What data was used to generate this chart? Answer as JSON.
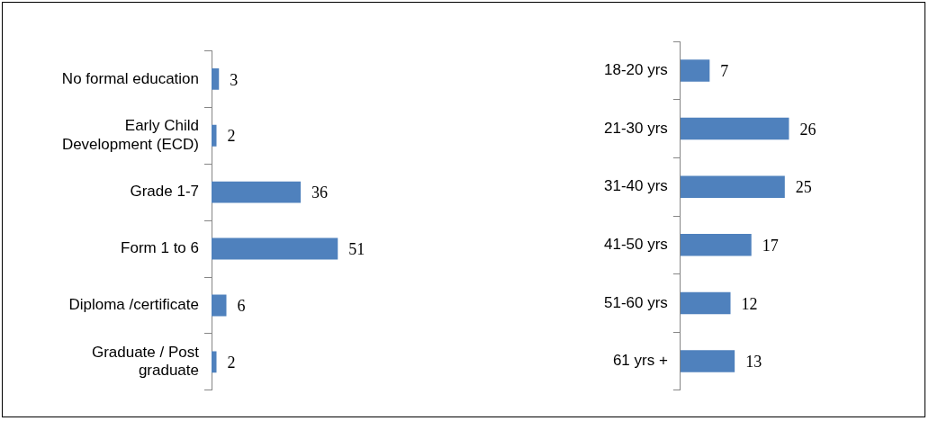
{
  "chart_data": [
    {
      "type": "bar",
      "orientation": "horizontal",
      "categories": [
        "No formal education",
        "Early Child Development (ECD)",
        "Grade 1-7",
        "Form 1 to 6",
        "Diploma /certificate",
        "Graduate / Post graduate"
      ],
      "values": [
        3,
        2,
        36,
        51,
        6,
        2
      ],
      "color": "#4f81bd",
      "data_labels": true
    },
    {
      "type": "bar",
      "orientation": "horizontal",
      "categories": [
        "18-20 yrs",
        "21-30 yrs",
        "31-40 yrs",
        "41-50 yrs",
        "51-60 yrs",
        "61 yrs +"
      ],
      "values": [
        7,
        26,
        25,
        17,
        12,
        13
      ],
      "color": "#4f81bd",
      "data_labels": true
    }
  ]
}
